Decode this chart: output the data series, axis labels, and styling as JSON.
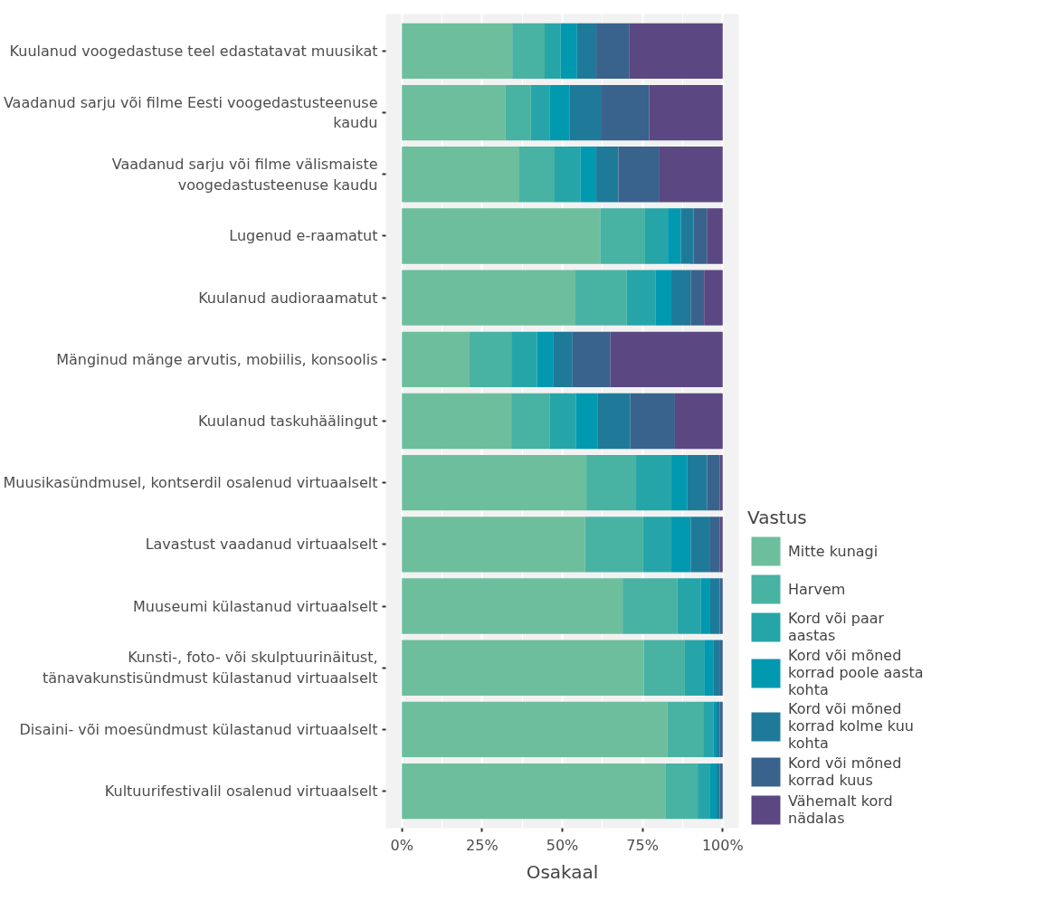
{
  "chart_data": {
    "type": "bar",
    "orientation": "horizontal",
    "stacked": true,
    "xlabel": "Osakaal",
    "legend_title": "Vastus",
    "legend": "right",
    "grid": "x",
    "categories": [
      "Kuulanud voogedastuse teel edastatavat muusikat",
      "Vaadanud sarju või filme Eesti voogedastusteenuse kaudu",
      "Vaadanud sarju või filme välismaiste voogedastusteenuse kaudu",
      "Lugenud e-raamatut",
      "Kuulanud audioraamatut",
      "Mänginud mänge arvutis, mobiilis, konsoolis",
      "Kuulanud taskuhäälingut",
      "Muusikasündmusel, kontserdil osalenud virtuaalselt",
      "Lavastust vaadanud virtuaalselt",
      "Muuseumi külastanud virtuaalselt",
      "Kunsti-, foto- või skulptuurinäitust, tänavakunstisündmust külastanud virtuaalselt",
      "Disaini- või moesündmust külastanud virtuaalselt",
      "Kultuurifestivalil osalenud virtuaalselt"
    ],
    "xlim": [
      -5,
      105
    ],
    "xticks": [
      {
        "value": 0,
        "label": "0%"
      },
      {
        "value": 25,
        "label": "25%"
      },
      {
        "value": 50,
        "label": "50%"
      },
      {
        "value": 75,
        "label": "75%"
      },
      {
        "value": 100,
        "label": "100%"
      }
    ],
    "series": [
      {
        "name": "Mitte kunagi",
        "color": "#6dbe9d",
        "values": [
          34.4,
          32.2,
          36.6,
          61.8,
          54.1,
          21.1,
          34.1,
          57.5,
          57.1,
          68.8,
          75.4,
          82.8,
          82.1
        ]
      },
      {
        "name": "Harvem",
        "color": "#48b2a3",
        "values": [
          10.1,
          8.0,
          11.0,
          14.0,
          16.0,
          13.0,
          11.9,
          15.5,
          18.1,
          17.1,
          12.8,
          11.1,
          10.1
        ]
      },
      {
        "name": "Kord või paar aastas",
        "color": "#26a5a8",
        "values": [
          5.0,
          5.8,
          8.0,
          7.1,
          8.9,
          8.0,
          8.2,
          11.0,
          8.8,
          7.2,
          6.0,
          3.3,
          3.9
        ]
      },
      {
        "name": "Kord või mõned korrad poole aasta kohta",
        "color": "#0099b0",
        "values": [
          5.1,
          6.2,
          5.0,
          4.1,
          5.0,
          5.0,
          6.9,
          5.0,
          6.0,
          3.0,
          3.0,
          0.9,
          2.0
        ]
      },
      {
        "name": "Kord või mõned korrad kolme kuu kohta",
        "color": "#1f7a9a",
        "values": [
          6.0,
          9.8,
          6.9,
          3.9,
          6.0,
          6.1,
          10.1,
          6.1,
          6.1,
          3.0,
          2.0,
          1.0,
          1.0
        ]
      },
      {
        "name": "Kord või mõned korrad kuus",
        "color": "#39628c",
        "values": [
          10.2,
          15.1,
          12.8,
          4.3,
          4.2,
          11.8,
          13.9,
          4.0,
          3.0,
          0.9,
          0.8,
          0.9,
          0.9
        ]
      },
      {
        "name": "Vähemalt kord nädalas",
        "color": "#5b4882",
        "values": [
          29.2,
          22.9,
          19.7,
          4.8,
          5.8,
          35.0,
          14.9,
          0.9,
          0.9,
          0,
          0,
          0,
          0
        ]
      }
    ]
  }
}
